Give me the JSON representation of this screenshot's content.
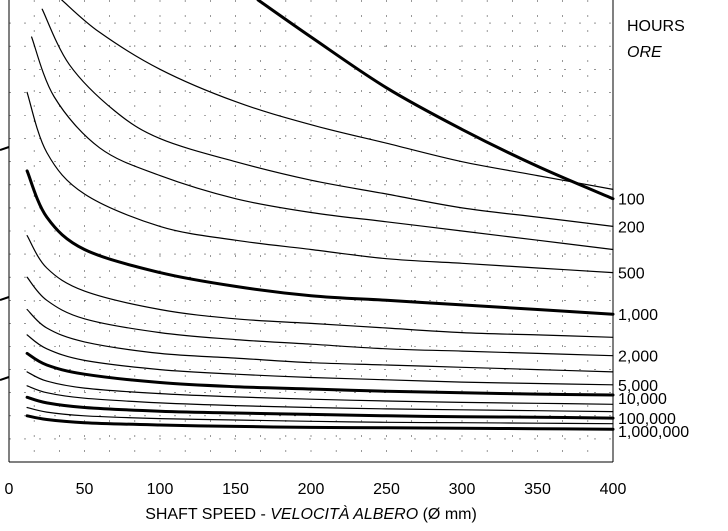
{
  "chart_data": {
    "type": "line",
    "xlabel_main": "SHAFT SPEED  - ",
    "xlabel_italic": "VELOCITÀ ALBERO",
    "xlabel_unit": " (Ø mm)",
    "legend_title": "HOURS",
    "legend_title_italic": "ORE",
    "xlim": [
      0,
      400
    ],
    "x_ticks": [
      0,
      50,
      100,
      150,
      200,
      250,
      300,
      350,
      400
    ],
    "x_tick_labels": [
      "0",
      "50",
      "100",
      "150",
      "200",
      "250",
      "300",
      "350",
      "400"
    ],
    "grid": "dashed",
    "series": [
      {
        "name": "100",
        "bold": true,
        "x": [
          165,
          200,
          250,
          300,
          350,
          400
        ],
        "y": [
          1.0,
          0.92,
          0.81,
          0.72,
          0.64,
          0.57
        ]
      },
      {
        "name": "",
        "bold": false,
        "x": [
          35,
          60,
          100,
          150,
          200,
          250,
          300,
          350,
          400
        ],
        "y": [
          1.0,
          0.93,
          0.85,
          0.78,
          0.73,
          0.69,
          0.65,
          0.62,
          0.59
        ]
      },
      {
        "name": "200",
        "bold": false,
        "x": [
          22,
          40,
          70,
          100,
          150,
          200,
          250,
          300,
          350,
          400
        ],
        "y": [
          0.98,
          0.86,
          0.76,
          0.7,
          0.65,
          0.61,
          0.58,
          0.55,
          0.53,
          0.51
        ]
      },
      {
        "name": "",
        "bold": false,
        "x": [
          15,
          30,
          60,
          100,
          150,
          200,
          250,
          300,
          350,
          400
        ],
        "y": [
          0.92,
          0.79,
          0.68,
          0.62,
          0.57,
          0.54,
          0.52,
          0.5,
          0.48,
          0.46
        ]
      },
      {
        "name": "500",
        "bold": false,
        "x": [
          12,
          25,
          50,
          100,
          150,
          200,
          250,
          300,
          350,
          400
        ],
        "y": [
          0.8,
          0.67,
          0.58,
          0.51,
          0.48,
          0.46,
          0.44,
          0.43,
          0.42,
          0.41
        ]
      },
      {
        "name": "1,000",
        "bold": true,
        "x": [
          12,
          25,
          50,
          100,
          150,
          200,
          250,
          300,
          350,
          400
        ],
        "y": [
          0.63,
          0.53,
          0.46,
          0.41,
          0.38,
          0.36,
          0.35,
          0.34,
          0.33,
          0.32
        ]
      },
      {
        "name": "",
        "bold": false,
        "x": [
          12,
          25,
          50,
          100,
          150,
          200,
          250,
          300,
          350,
          400
        ],
        "y": [
          0.49,
          0.42,
          0.37,
          0.33,
          0.31,
          0.3,
          0.29,
          0.28,
          0.275,
          0.27
        ]
      },
      {
        "name": "2,000",
        "bold": false,
        "x": [
          12,
          25,
          50,
          100,
          150,
          200,
          250,
          300,
          350,
          400
        ],
        "y": [
          0.4,
          0.35,
          0.31,
          0.28,
          0.265,
          0.255,
          0.245,
          0.24,
          0.235,
          0.23
        ]
      },
      {
        "name": "",
        "bold": false,
        "x": [
          12,
          25,
          50,
          100,
          150,
          200,
          250,
          300,
          350,
          400
        ],
        "y": [
          0.33,
          0.29,
          0.26,
          0.235,
          0.225,
          0.215,
          0.21,
          0.205,
          0.2,
          0.195
        ]
      },
      {
        "name": "5,000",
        "bold": false,
        "x": [
          12,
          25,
          50,
          100,
          150,
          200,
          250,
          300,
          350,
          400
        ],
        "y": [
          0.275,
          0.245,
          0.22,
          0.2,
          0.19,
          0.183,
          0.178,
          0.173,
          0.17,
          0.167
        ]
      },
      {
        "name": "10,000",
        "bold": true,
        "x": [
          12,
          25,
          50,
          100,
          150,
          200,
          250,
          300,
          350,
          400
        ],
        "y": [
          0.235,
          0.21,
          0.19,
          0.172,
          0.163,
          0.158,
          0.153,
          0.15,
          0.147,
          0.145
        ]
      },
      {
        "name": "",
        "bold": false,
        "x": [
          12,
          25,
          50,
          100,
          150,
          200,
          250,
          300,
          350,
          400
        ],
        "y": [
          0.195,
          0.175,
          0.16,
          0.148,
          0.141,
          0.136,
          0.132,
          0.129,
          0.127,
          0.125
        ]
      },
      {
        "name": "",
        "bold": false,
        "x": [
          12,
          25,
          50,
          100,
          150,
          200,
          250,
          300,
          350,
          400
        ],
        "y": [
          0.165,
          0.15,
          0.138,
          0.128,
          0.122,
          0.118,
          0.115,
          0.113,
          0.111,
          0.109
        ]
      },
      {
        "name": "100,000",
        "bold": true,
        "x": [
          12,
          25,
          50,
          100,
          150,
          200,
          250,
          300,
          350,
          400
        ],
        "y": [
          0.14,
          0.128,
          0.118,
          0.11,
          0.106,
          0.103,
          0.1,
          0.098,
          0.097,
          0.095
        ]
      },
      {
        "name": "",
        "bold": false,
        "x": [
          12,
          25,
          50,
          100,
          150,
          200,
          250,
          300,
          350,
          400
        ],
        "y": [
          0.118,
          0.108,
          0.1,
          0.094,
          0.091,
          0.088,
          0.086,
          0.085,
          0.084,
          0.083
        ]
      },
      {
        "name": "1,000,000",
        "bold": true,
        "x": [
          12,
          25,
          50,
          100,
          150,
          200,
          250,
          300,
          350,
          400
        ],
        "y": [
          0.1,
          0.092,
          0.085,
          0.08,
          0.077,
          0.075,
          0.074,
          0.073,
          0.072,
          0.071
        ]
      }
    ]
  }
}
